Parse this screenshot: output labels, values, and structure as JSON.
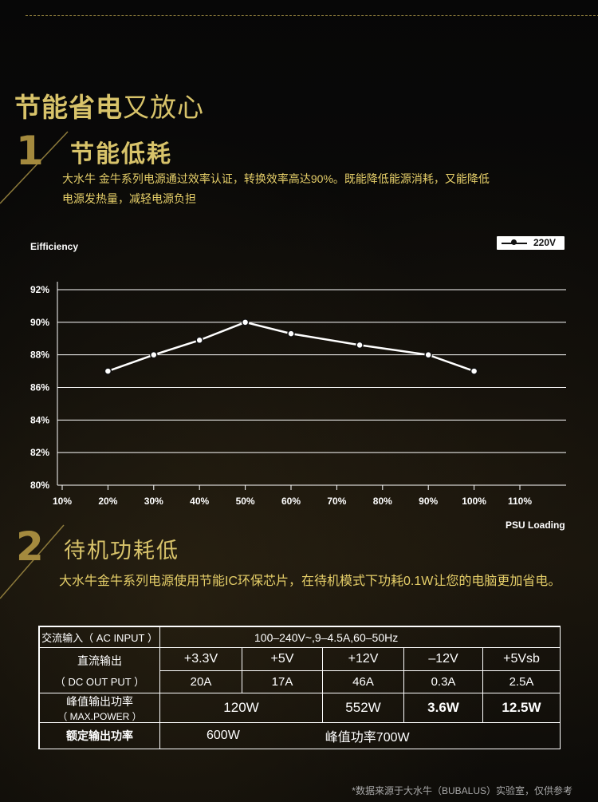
{
  "heading": {
    "bold": "节能省电",
    "rest": "又放心"
  },
  "section1": {
    "number": "1",
    "title": "节能低耗",
    "line1": "大水牛 金牛系列电源通过效率认证，转换效率高达90%。既能降低能源消耗，又能降低",
    "line2": "电源发热量，减轻电源负担"
  },
  "chart_data": {
    "type": "line",
    "ylabel": "Eifficiency",
    "xlabel": "PSU Loading",
    "legend": "220V",
    "x_ticks": [
      "10%",
      "20%",
      "30%",
      "40%",
      "50%",
      "60%",
      "70%",
      "80%",
      "90%",
      "100%",
      "110%"
    ],
    "y_ticks": [
      "80%",
      "82%",
      "84%",
      "86%",
      "88%",
      "90%",
      "92%"
    ],
    "ylim": [
      80,
      92
    ],
    "series": [
      {
        "name": "220V",
        "x": [
          20,
          30,
          40,
          50,
          60,
          75,
          90,
          100
        ],
        "y": [
          87,
          88,
          88.9,
          90,
          89.3,
          88.6,
          88,
          87
        ]
      }
    ],
    "grid": true,
    "legend_position": "top-right",
    "colors": {
      "line": "#ffffff",
      "grid": "#ffffff"
    }
  },
  "section2": {
    "number": "2",
    "title": "待机功耗低",
    "text": "大水牛金牛系列电源使用节能IC环保芯片，在待机模式下功耗0.1W让您的电脑更加省电。"
  },
  "table": {
    "ac_label": "交流输入（ AC INPUT ）",
    "ac_value": "100–240V~,9–4.5A,60–50Hz",
    "dc_label1": "直流输出",
    "dc_label2": "（ DC OUT PUT ）",
    "rails": [
      "+3.3V",
      "+5V",
      "+12V",
      "–12V",
      "+5Vsb"
    ],
    "currents": [
      "20A",
      "17A",
      "46A",
      "0.3A",
      "2.5A"
    ],
    "peak_label1": "峰值输出功率",
    "peak_label2": "（ MAX.POWER ）",
    "peak_values": [
      "120W",
      "552W",
      "3.6W",
      "12.5W"
    ],
    "rated_label": "额定输出功率",
    "rated_value": "600W",
    "peak_power": "峰值功率700W"
  },
  "note": "*数据来源于大水牛（BUBALUS）实验室，仅供参考"
}
